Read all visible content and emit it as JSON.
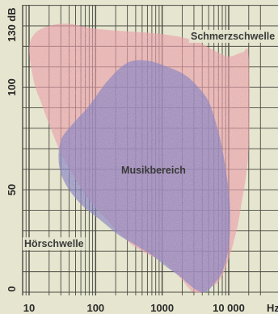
{
  "chart_data": {
    "type": "area",
    "title": "",
    "x_scale": "log",
    "xlim": [
      10,
      20000
    ],
    "ylim": [
      0,
      130
    ],
    "x_ticks": [
      {
        "value": 10,
        "label": "10"
      },
      {
        "value": 100,
        "label": "100"
      },
      {
        "value": 1000,
        "label": "1000"
      },
      {
        "value": 10000,
        "label": "10 000"
      }
    ],
    "x_unit_label": "Hz",
    "y_ticks": [
      {
        "value": 0,
        "label": "0"
      },
      {
        "value": 50,
        "label": "50"
      },
      {
        "value": 100,
        "label": "100"
      },
      {
        "value": 130,
        "label": "130 dB"
      }
    ],
    "grid": true,
    "regions": [
      {
        "name": "Schmerzschwelle",
        "label": "Schmerzschwelle",
        "color": "#e9a1ab",
        "x": [
          10,
          12,
          20,
          40,
          80,
          150,
          400,
          1000,
          3000,
          6000,
          10000,
          16000,
          20000,
          20000,
          15000,
          12000,
          9000,
          7000,
          5000,
          4000,
          3000,
          2500,
          2000,
          1500,
          1000,
          500,
          300,
          150,
          80,
          50,
          30,
          20,
          15,
          12,
          10
        ],
        "y": [
          118,
          126,
          130,
          131,
          129,
          128,
          127,
          126,
          123,
          118,
          115,
          117,
          115,
          70,
          40,
          25,
          12,
          5,
          2,
          0,
          0,
          2,
          6,
          10,
          15,
          20,
          25,
          35,
          45,
          55,
          68,
          82,
          93,
          102,
          118
        ]
      },
      {
        "name": "Musikbereich",
        "label": "Musikbereich",
        "color": "#8b86c4",
        "x": [
          30,
          45,
          80,
          150,
          300,
          600,
          1200,
          2200,
          3500,
          5000,
          6500,
          8000,
          9500,
          10500,
          10000,
          8000,
          6000,
          4500,
          3300,
          2500,
          1800,
          1200,
          700,
          400,
          220,
          120,
          60,
          35,
          28,
          30
        ],
        "y": [
          74,
          82,
          91,
          103,
          112,
          113,
          110,
          106,
          100,
          93,
          82,
          70,
          55,
          40,
          22,
          10,
          4,
          0,
          1,
          4,
          8,
          12,
          18,
          23,
          28,
          35,
          43,
          53,
          63,
          74
        ]
      },
      {
        "name": "Hörschwelle",
        "label": "Hörschwelle",
        "color": "#ffffff",
        "x": [
          10,
          20,
          50,
          100,
          300,
          1000,
          3000,
          6000,
          10000,
          16000,
          20000
        ],
        "y": [
          65,
          50,
          40,
          25,
          12,
          4,
          -2,
          5,
          12,
          30,
          50
        ]
      }
    ]
  },
  "colors": {
    "background": "#e6e5cf",
    "grid": "#4a4a44",
    "pain_area": "#e9a1ab",
    "music_area": "#8b86c4"
  }
}
